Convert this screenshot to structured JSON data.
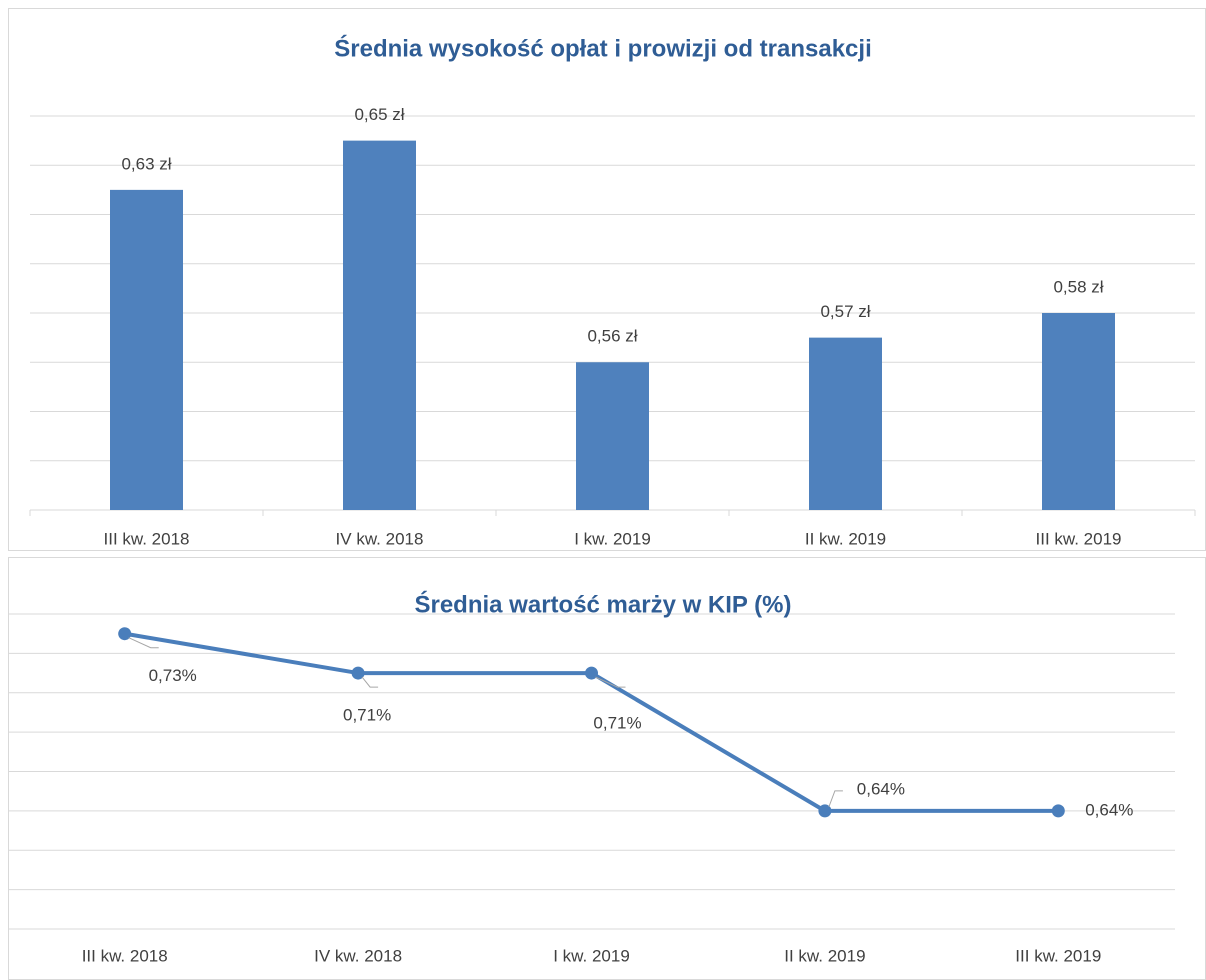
{
  "chart_data": [
    {
      "type": "bar",
      "title": "Średnia wysokość opłat i prowizji od transakcji",
      "categories": [
        "III kw. 2018",
        "IV kw. 2018",
        "I kw. 2019",
        "II kw. 2019",
        "III kw. 2019"
      ],
      "values": [
        0.63,
        0.65,
        0.56,
        0.57,
        0.58
      ],
      "value_labels": [
        "0,63 zł",
        "0,65 zł",
        "0,56 zł",
        "0,57 zł",
        "0,58 zł"
      ],
      "color": "#4f81bd",
      "ylim": [
        0.5,
        0.66
      ],
      "yticks": [
        0.5,
        0.52,
        0.54,
        0.56,
        0.58,
        0.6,
        0.62,
        0.64,
        0.66
      ],
      "grid": true,
      "ytick_labels": false
    },
    {
      "type": "line",
      "title": "Średnia wartość marży w KIP (%)",
      "categories": [
        "III kw. 2018",
        "IV kw. 2018",
        "I kw. 2019",
        "II kw. 2019",
        "III kw. 2019"
      ],
      "values": [
        0.73,
        0.71,
        0.71,
        0.64,
        0.64
      ],
      "value_labels": [
        "0,73%",
        "0,71%",
        "0,71%",
        "0,64%",
        "0,64%"
      ],
      "color": "#4a7ebb",
      "ylim": [
        0.58,
        0.74
      ],
      "yticks": [
        0.58,
        0.6,
        0.62,
        0.64,
        0.66,
        0.68,
        0.7,
        0.72,
        0.74
      ],
      "grid": true,
      "ytick_labels": false
    }
  ]
}
